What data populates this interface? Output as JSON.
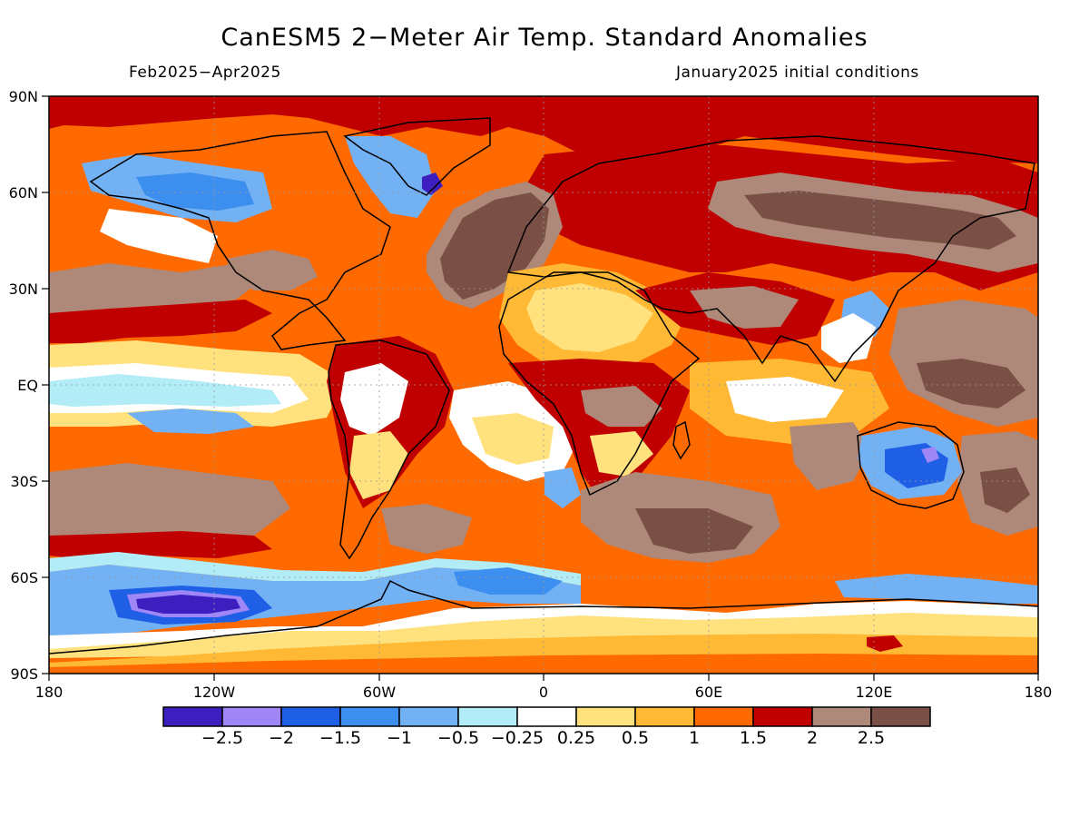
{
  "header": {
    "title": "CanESM5 2−Meter Air Temp. Standard Anomalies",
    "period": "Feb2025−Apr2025",
    "init": "January2025 initial conditions"
  },
  "axes": {
    "lat_ticks": [
      "90N",
      "60N",
      "30N",
      "EQ",
      "30S",
      "60S",
      "90S"
    ],
    "lon_ticks": [
      "180",
      "120W",
      "60W",
      "0",
      "60E",
      "120E",
      "180"
    ]
  },
  "colorbar": {
    "colors": [
      "#3c1fbe",
      "#9f86f7",
      "#1e5fe6",
      "#3c8fef",
      "#73b1f5",
      "#b2ecf7",
      "#ffffff",
      "#ffe27e",
      "#ffb935",
      "#ff6a00",
      "#c00000",
      "#ae8878",
      "#7a4f45"
    ],
    "labels": [
      "−2.5",
      "−2",
      "−1.5",
      "−1",
      "−0.5",
      "−0.25",
      "0.25",
      "0.5",
      "1",
      "1.5",
      "2",
      "2.5"
    ]
  },
  "map_data": {
    "colors": {
      "deep_blue": "#3c1fbe",
      "purple": "#9f86f7",
      "blue": "#1e5fe6",
      "mid_blue": "#3c8fef",
      "light_blue": "#73b1f5",
      "pale_blue": "#b2ecf7",
      "white": "#ffffff",
      "yellow": "#ffe27e",
      "orange_light": "#ffb935",
      "orange": "#ff6a00",
      "red": "#c00000",
      "brown_light": "#ae8878",
      "brown_dark": "#7a4f45"
    }
  }
}
